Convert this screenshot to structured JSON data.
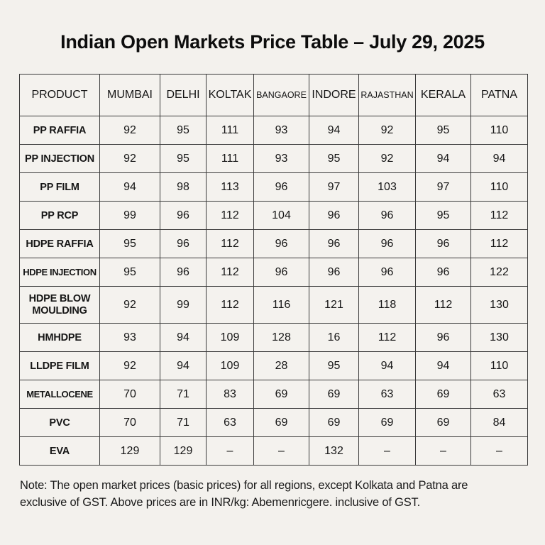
{
  "title": "Indian Open Markets Price Table – July 29, 2025",
  "table": {
    "headers": [
      "PRODUCT",
      "MUMBAI",
      "DELHI",
      "KOLTAK",
      "BANGAORE",
      "INDORE",
      "RAJASTHAN",
      "KERALA",
      "PATNA"
    ],
    "rows": [
      {
        "product": "PP RAFFIA",
        "values": [
          "92",
          "95",
          "111",
          "93",
          "94",
          "92",
          "95",
          "110"
        ]
      },
      {
        "product": "PP INJECTION",
        "values": [
          "92",
          "95",
          "111",
          "93",
          "95",
          "92",
          "94",
          "94"
        ]
      },
      {
        "product": "PP FILM",
        "values": [
          "94",
          "98",
          "113",
          "96",
          "97",
          "103",
          "97",
          "110"
        ]
      },
      {
        "product": "PP RCP",
        "values": [
          "99",
          "96",
          "112",
          "104",
          "96",
          "96",
          "95",
          "112"
        ]
      },
      {
        "product": "HDPE RAFFIA",
        "values": [
          "95",
          "96",
          "112",
          "96",
          "96",
          "96",
          "96",
          "112"
        ]
      },
      {
        "product": "HDPE INJECTION",
        "values": [
          "95",
          "96",
          "112",
          "96",
          "96",
          "96",
          "96",
          "122"
        ]
      },
      {
        "product": "HDPE BLOW MOULDING",
        "values": [
          "92",
          "99",
          "112",
          "116",
          "121",
          "118",
          "112",
          "130"
        ]
      },
      {
        "product": "HMHDPE",
        "values": [
          "93",
          "94",
          "109",
          "128",
          "16",
          "112",
          "96",
          "130"
        ]
      },
      {
        "product": "LLDPE FILM",
        "values": [
          "92",
          "94",
          "109",
          "28",
          "95",
          "94",
          "94",
          "110"
        ]
      },
      {
        "product": "METALLOCENE",
        "values": [
          "70",
          "71",
          "83",
          "69",
          "69",
          "63",
          "69",
          "63"
        ]
      },
      {
        "product": "PVC",
        "values": [
          "70",
          "71",
          "63",
          "69",
          "69",
          "69",
          "69",
          "84"
        ]
      },
      {
        "product": "EVA",
        "values": [
          "129",
          "129",
          "–",
          "–",
          "132",
          "–",
          "–",
          "–"
        ]
      }
    ]
  },
  "note": {
    "line1": "Note: The open market prices (basic prices) for all regions, except Kolkata and Patna are",
    "line2": "exclusive of GST. Above prices are in INR/kg: Abemenricgere. inclusive of GST."
  }
}
